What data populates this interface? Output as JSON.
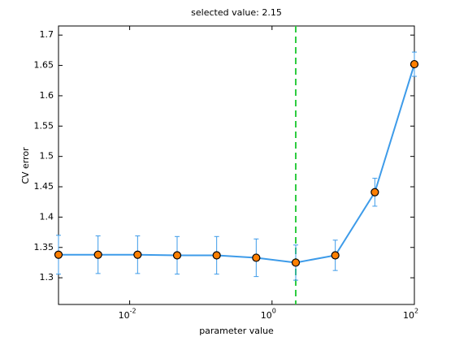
{
  "chart_data": {
    "type": "line",
    "title": "selected value: 2.15",
    "xlabel": "parameter value",
    "ylabel": "CV error",
    "xscale": "log",
    "x": [
      0.001,
      0.003594,
      0.01292,
      0.04642,
      0.1668,
      0.5995,
      2.154,
      7.743,
      27.83,
      100
    ],
    "series": [
      {
        "color": "#3d9be9",
        "marker_color": "#ff7f00",
        "values": [
          1.338,
          1.338,
          1.338,
          1.337,
          1.337,
          1.333,
          1.325,
          1.337,
          1.441,
          1.652
        ],
        "errors": [
          0.032,
          0.031,
          0.031,
          0.031,
          0.031,
          0.031,
          0.029,
          0.025,
          0.023,
          0.02
        ]
      }
    ],
    "vline": {
      "value": 2.154,
      "color": "#2ecc40"
    },
    "xlim": [
      0.001,
      100
    ],
    "ylim": [
      1.256,
      1.715
    ],
    "xticks": [
      {
        "value": 0.01,
        "label": "10",
        "exponent": "-2"
      },
      {
        "value": 1,
        "label": "10",
        "exponent": "0"
      },
      {
        "value": 100,
        "label": "10",
        "exponent": "2"
      }
    ],
    "yticks": [
      1.3,
      1.35,
      1.4,
      1.45,
      1.5,
      1.55,
      1.6,
      1.65,
      1.7
    ]
  }
}
